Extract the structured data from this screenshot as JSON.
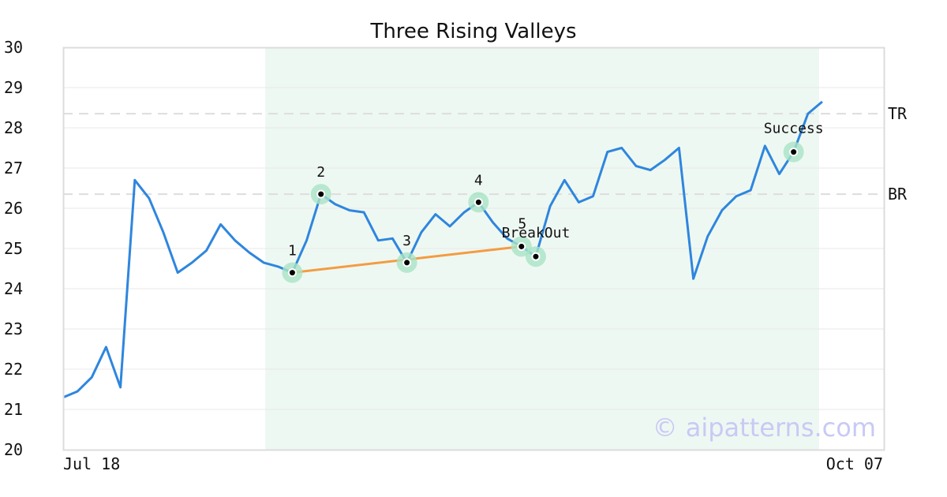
{
  "chart_data": {
    "type": "line",
    "title": "Three Rising Valleys",
    "xlabel": "",
    "ylabel": "",
    "ylim": [
      20,
      30
    ],
    "ytick_labels": [
      "20",
      "21",
      "22",
      "23",
      "24",
      "25",
      "26",
      "27",
      "28",
      "29",
      "30"
    ],
    "xtick_labels": [
      "Jul 18",
      "Oct 07"
    ],
    "grid": true,
    "series": [
      {
        "color": "#2e86de",
        "values": [
          21.3,
          21.45,
          21.8,
          22.55,
          21.55,
          26.7,
          26.25,
          25.4,
          24.4,
          24.65,
          24.95,
          25.6,
          25.2,
          24.9,
          24.65,
          24.55,
          24.4,
          25.2,
          26.35,
          26.1,
          25.95,
          25.9,
          25.2,
          25.25,
          24.65,
          25.4,
          25.85,
          25.55,
          25.9,
          26.15,
          25.65,
          25.25,
          25.05,
          24.8,
          26.05,
          26.7,
          26.15,
          26.3,
          27.4,
          27.5,
          27.05,
          26.95,
          27.2,
          27.5,
          24.25,
          25.3,
          25.95,
          26.3,
          26.45,
          27.55,
          26.85,
          27.4,
          28.35,
          28.65
        ]
      }
    ],
    "resistance_line": {
      "label": "TR",
      "value": 28.35,
      "color": "#dddddd"
    },
    "support_line": {
      "label": "BR",
      "value": 26.35,
      "color": "#dddddd"
    },
    "trendline": {
      "color": "#f39c42",
      "from_index": 16,
      "from_value": 24.4,
      "to_index": 32,
      "to_value": 25.05
    },
    "pattern_region": {
      "from_index": 14,
      "to_index": 53,
      "color": "#e8f5ee"
    },
    "pattern_points": [
      {
        "label": "1",
        "index": 16,
        "value": 24.4
      },
      {
        "label": "2",
        "index": 18,
        "value": 26.35
      },
      {
        "label": "3",
        "index": 24,
        "value": 24.65
      },
      {
        "label": "4",
        "index": 29,
        "value": 26.15
      },
      {
        "label": "5",
        "index": 32,
        "value": 25.05
      },
      {
        "label": "BreakOut",
        "index": 33,
        "value": 24.8
      },
      {
        "label": "Success",
        "index": 51,
        "value": 27.4
      }
    ],
    "watermark": "© aipatterns.com"
  }
}
